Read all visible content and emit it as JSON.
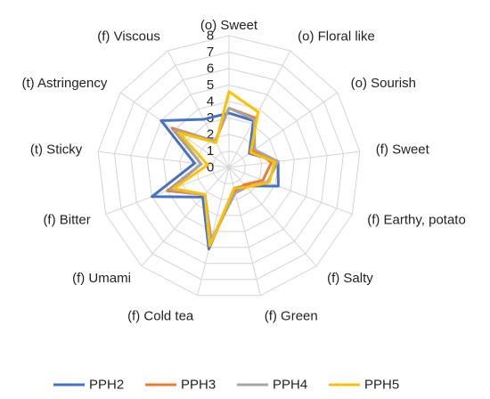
{
  "chart_data": {
    "type": "radar",
    "categories": [
      "(o) Sweet",
      "(o) Floral like",
      "(o) Sourish",
      "(f) Sweet",
      "(f) Earthy, potato",
      "(f) Salty",
      "(f) Green",
      "(f) Cold tea",
      "(f) Umami",
      "(f) Bitter",
      "(t) Sticky",
      "(t) Astringency",
      "(f) Viscous"
    ],
    "rlim": [
      0,
      8
    ],
    "ticks": [
      "0",
      "1",
      "2",
      "3",
      "4",
      "5",
      "6",
      "7",
      "8"
    ],
    "grid": true,
    "legend_position": "bottom",
    "series": [
      {
        "name": "PPH2",
        "color": "#4472C4",
        "values": [
          3.3,
          3.2,
          1.5,
          3.0,
          3.2,
          1.5,
          1.3,
          5.1,
          2.4,
          5.0,
          2.1,
          5.0,
          3.3
        ]
      },
      {
        "name": "PPH3",
        "color": "#ED7D31",
        "values": [
          3.6,
          3.4,
          1.8,
          2.6,
          2.2,
          1.4,
          1.5,
          4.8,
          2.2,
          4.0,
          1.7,
          4.2,
          1.8
        ]
      },
      {
        "name": "PPH4",
        "color": "#A5A5A5",
        "values": [
          3.6,
          3.3,
          1.9,
          3.0,
          2.5,
          1.6,
          1.6,
          4.5,
          2.2,
          3.8,
          1.7,
          4.0,
          1.8
        ]
      },
      {
        "name": "PPH5",
        "color": "#FFC000",
        "values": [
          4.6,
          3.8,
          1.6,
          2.8,
          2.6,
          1.6,
          1.3,
          4.9,
          2.2,
          3.6,
          1.3,
          3.7,
          1.7
        ]
      }
    ]
  }
}
